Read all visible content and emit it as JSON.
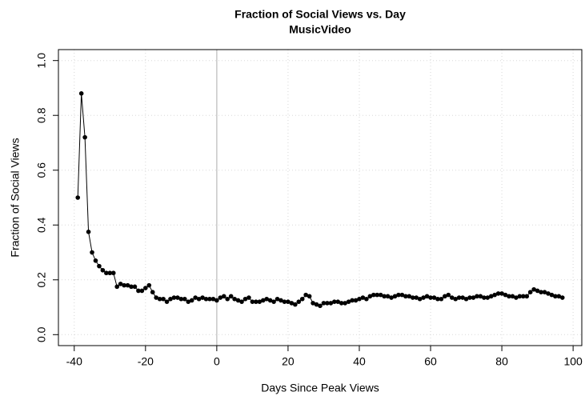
{
  "chart_data": {
    "type": "line",
    "title": "Fraction of Social Views vs. Day",
    "subtitle": "MusicVideo",
    "x_label": "Days Since Peak Views",
    "y_label": "Fraction of Social Views",
    "x": [
      -39,
      -38,
      -37,
      -36,
      -35,
      -34,
      -33,
      -32,
      -31,
      -30,
      -29,
      -28,
      -27,
      -26,
      -25,
      -24,
      -23,
      -22,
      -21,
      -20,
      -19,
      -18,
      -17,
      -16,
      -15,
      -14,
      -13,
      -12,
      -11,
      -10,
      -9,
      -8,
      -7,
      -6,
      -5,
      -4,
      -3,
      -2,
      -1,
      0,
      1,
      2,
      3,
      4,
      5,
      6,
      7,
      8,
      9,
      10,
      11,
      12,
      13,
      14,
      15,
      16,
      17,
      18,
      19,
      20,
      21,
      22,
      23,
      24,
      25,
      26,
      27,
      28,
      29,
      30,
      31,
      32,
      33,
      34,
      35,
      36,
      37,
      38,
      39,
      40,
      41,
      42,
      43,
      44,
      45,
      46,
      47,
      48,
      49,
      50,
      51,
      52,
      53,
      54,
      55,
      56,
      57,
      58,
      59,
      60,
      61,
      62,
      63,
      64,
      65,
      66,
      67,
      68,
      69,
      70,
      71,
      72,
      73,
      74,
      75,
      76,
      77,
      78,
      79,
      80,
      81,
      82,
      83,
      84,
      85,
      86,
      87,
      88,
      89,
      90,
      91,
      92,
      93,
      94,
      95,
      96,
      97
    ],
    "series": [
      {
        "name": "MusicVideo",
        "color": "#000000",
        "values": [
          0.5,
          0.88,
          0.72,
          0.375,
          0.3,
          0.27,
          0.25,
          0.235,
          0.225,
          0.225,
          0.225,
          0.175,
          0.185,
          0.18,
          0.18,
          0.175,
          0.175,
          0.16,
          0.16,
          0.17,
          0.18,
          0.155,
          0.135,
          0.13,
          0.13,
          0.12,
          0.13,
          0.135,
          0.135,
          0.13,
          0.13,
          0.12,
          0.125,
          0.135,
          0.13,
          0.135,
          0.13,
          0.13,
          0.13,
          0.125,
          0.135,
          0.14,
          0.13,
          0.14,
          0.13,
          0.125,
          0.12,
          0.13,
          0.135,
          0.12,
          0.12,
          0.12,
          0.125,
          0.13,
          0.125,
          0.12,
          0.13,
          0.125,
          0.12,
          0.12,
          0.115,
          0.11,
          0.12,
          0.13,
          0.145,
          0.14,
          0.115,
          0.11,
          0.105,
          0.115,
          0.115,
          0.115,
          0.12,
          0.12,
          0.115,
          0.115,
          0.12,
          0.125,
          0.125,
          0.13,
          0.135,
          0.13,
          0.14,
          0.145,
          0.145,
          0.145,
          0.14,
          0.14,
          0.135,
          0.14,
          0.145,
          0.145,
          0.14,
          0.14,
          0.135,
          0.135,
          0.13,
          0.135,
          0.14,
          0.135,
          0.135,
          0.13,
          0.13,
          0.14,
          0.145,
          0.135,
          0.13,
          0.135,
          0.135,
          0.13,
          0.135,
          0.135,
          0.14,
          0.14,
          0.135,
          0.135,
          0.14,
          0.145,
          0.15,
          0.15,
          0.145,
          0.14,
          0.14,
          0.135,
          0.14,
          0.14,
          0.14,
          0.155,
          0.165,
          0.16,
          0.155,
          0.155,
          0.15,
          0.145,
          0.14,
          0.14,
          0.135
        ]
      }
    ],
    "xlim": [
      -44.44,
      102.44
    ],
    "ylim": [
      -0.04,
      1.04
    ],
    "xticks": [
      -40,
      -20,
      0,
      20,
      40,
      60,
      80,
      100
    ],
    "yticks": [
      {
        "value": 0,
        "label": "0.0"
      },
      0.2,
      0.4,
      0.6,
      0.8,
      {
        "value": 1,
        "label": "1.0"
      }
    ],
    "vline": 0,
    "vline_color": "#c8c8c8",
    "grid": true
  }
}
